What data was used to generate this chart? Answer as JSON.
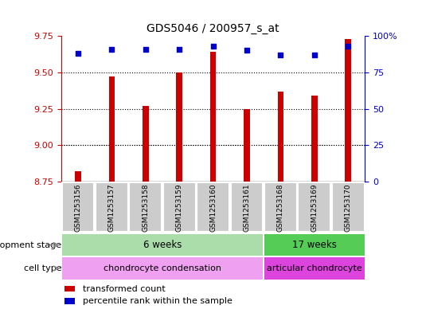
{
  "title": "GDS5046 / 200957_s_at",
  "samples": [
    "GSM1253156",
    "GSM1253157",
    "GSM1253158",
    "GSM1253159",
    "GSM1253160",
    "GSM1253161",
    "GSM1253168",
    "GSM1253169",
    "GSM1253170"
  ],
  "transformed_counts": [
    8.82,
    9.47,
    9.27,
    9.5,
    9.64,
    9.25,
    9.37,
    9.34,
    9.73
  ],
  "percentile_ranks": [
    88,
    91,
    91,
    91,
    93,
    90,
    87,
    87,
    93
  ],
  "bar_color": "#cc0000",
  "dot_color": "#0000cc",
  "ylim_left": [
    8.75,
    9.75
  ],
  "ylim_right": [
    0,
    100
  ],
  "yticks_left": [
    8.75,
    9.0,
    9.25,
    9.5,
    9.75
  ],
  "yticks_right": [
    0,
    25,
    50,
    75,
    100
  ],
  "ytick_labels_right": [
    "0",
    "25",
    "50",
    "75",
    "100%"
  ],
  "grid_vals": [
    9.0,
    9.25,
    9.5
  ],
  "n6": 6,
  "n17": 3,
  "dev_stage_color_6": "#aaddaa",
  "dev_stage_color_17": "#55cc55",
  "cell_type_color_chondro": "#f0a0f0",
  "cell_type_color_articular": "#dd44dd",
  "bar_bottom": 8.75,
  "bar_width": 0.18,
  "legend_square_red": "#cc0000",
  "legend_square_blue": "#0000cc",
  "bg_color": "#ffffff"
}
